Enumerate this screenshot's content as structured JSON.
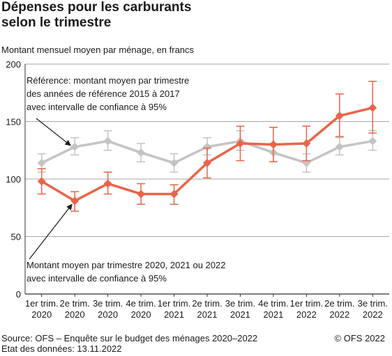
{
  "title": "Dépenses pour les carburants\nselon le trimestre",
  "subtitle": "Montant mensuel moyen par ménage, en francs",
  "source": "Source: OFS – Enquête sur le budget des ménages 2020–2022",
  "data_date": "Etat des données: 13.11.2022",
  "copyright": "© OFS 2022",
  "annotations": {
    "reference": [
      "Référence: montant moyen par trimestre",
      "des années de référence 2015 à 2017",
      "avec intervalle de confiance à 95%"
    ],
    "current": [
      "Montant moyen par trimestre 2020, 2021 ou 2022",
      "avec intervalle de confiance à 95%"
    ]
  },
  "colors": {
    "reference": "#c4c4c4",
    "current": "#e8654a",
    "grid": "#8a8a8a"
  },
  "chart_data": {
    "type": "line",
    "categories": [
      [
        "1er trim.",
        "2020"
      ],
      [
        "2e trim.",
        "2020"
      ],
      [
        "3e trim.",
        "2020"
      ],
      [
        "4e trim.",
        "2020"
      ],
      [
        "1er trim.",
        "2021"
      ],
      [
        "2e trim.",
        "2021"
      ],
      [
        "3e trim.",
        "2021"
      ],
      [
        "4e trim.",
        "2021"
      ],
      [
        "1er trim.",
        "2022"
      ],
      [
        "2e trim.",
        "2022"
      ],
      [
        "3e trim.",
        "2022"
      ]
    ],
    "ylim": [
      0,
      200
    ],
    "yticks": [
      0,
      50,
      100,
      150,
      200
    ],
    "grid": true,
    "series": [
      {
        "key": "reference",
        "values": [
          114,
          128,
          133,
          123,
          114,
          128,
          133,
          123,
          114,
          128,
          133
        ],
        "lower": [
          106,
          121,
          125,
          115,
          106,
          121,
          125,
          115,
          106,
          121,
          125
        ],
        "upper": [
          122,
          136,
          142,
          131,
          122,
          136,
          142,
          131,
          122,
          136,
          142
        ]
      },
      {
        "key": "current",
        "values": [
          98,
          81,
          96,
          87,
          87,
          114,
          131,
          130,
          131,
          155,
          162
        ],
        "lower": [
          87,
          72,
          87,
          78,
          78,
          101,
          116,
          115,
          116,
          137,
          140
        ],
        "upper": [
          109,
          89,
          106,
          96,
          95,
          127,
          146,
          145,
          146,
          174,
          185
        ]
      }
    ]
  }
}
